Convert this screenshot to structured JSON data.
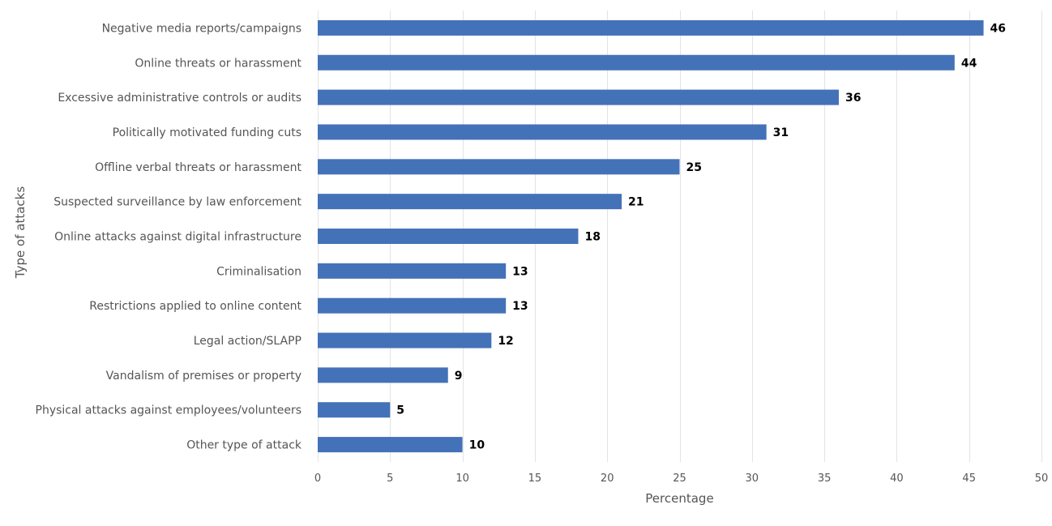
{
  "chart_data": {
    "type": "bar",
    "orientation": "horizontal",
    "title": "",
    "xlabel": "Percentage",
    "ylabel": "Type of attacks",
    "xlim": [
      0,
      50
    ],
    "xticks": [
      0,
      5,
      10,
      15,
      20,
      25,
      30,
      35,
      40,
      45,
      50
    ],
    "grid": true,
    "bar_color": "#4472b8",
    "categories": [
      "Negative media reports/campaigns",
      "Online threats or harassment",
      "Excessive administrative controls or audits",
      "Politically motivated funding cuts",
      "Offline verbal threats or harassment",
      "Suspected surveillance by law enforcement",
      "Online attacks against digital infrastructure",
      "Criminalisation",
      "Restrictions applied to online content",
      "Legal action/SLAPP",
      "Vandalism of premises or property",
      "Physical attacks against employees/volunteers",
      "Other type of attack"
    ],
    "values": [
      46,
      44,
      36,
      31,
      25,
      21,
      18,
      13,
      13,
      12,
      9,
      5,
      10
    ]
  }
}
